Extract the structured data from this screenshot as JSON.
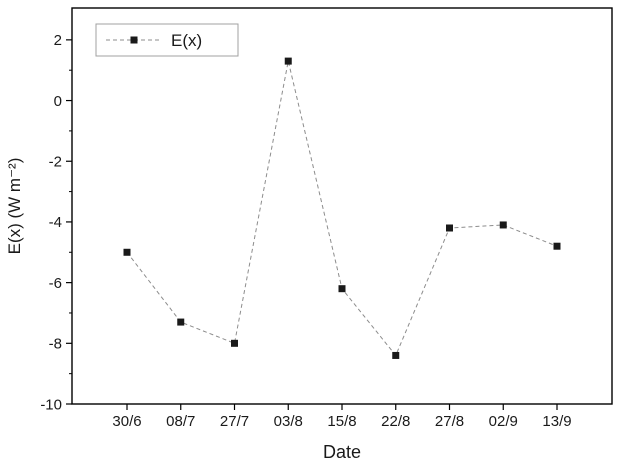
{
  "chart_data": {
    "type": "line",
    "categories": [
      "30/6",
      "08/7",
      "27/7",
      "03/8",
      "15/8",
      "22/8",
      "27/8",
      "02/9",
      "13/9"
    ],
    "series": [
      {
        "name": "E(x)",
        "values": [
          -5.0,
          -7.3,
          -8.0,
          1.3,
          -6.2,
          -8.4,
          -4.2,
          -4.1,
          -4.8
        ]
      }
    ],
    "title": "",
    "xlabel": "Date",
    "ylabel": "E(x) (W m⁻²)",
    "ylim": [
      -10,
      3.05
    ],
    "yticks": [
      -10,
      -8,
      -6,
      -4,
      -2,
      0,
      2
    ],
    "y_minor_ticks": [
      -9,
      -7,
      -5,
      -3,
      -1,
      1
    ],
    "legend": {
      "position": "top-left",
      "entries": [
        "E(x)"
      ]
    },
    "grid": false,
    "marker": "square",
    "line_style": "dashed",
    "colors": {
      "marker": "#1a1a1a",
      "line": "#8c8c8c",
      "axis": "#000000",
      "text": "#1a1a1a",
      "legend_border": "#a0a0a0",
      "background": "#ffffff"
    }
  }
}
